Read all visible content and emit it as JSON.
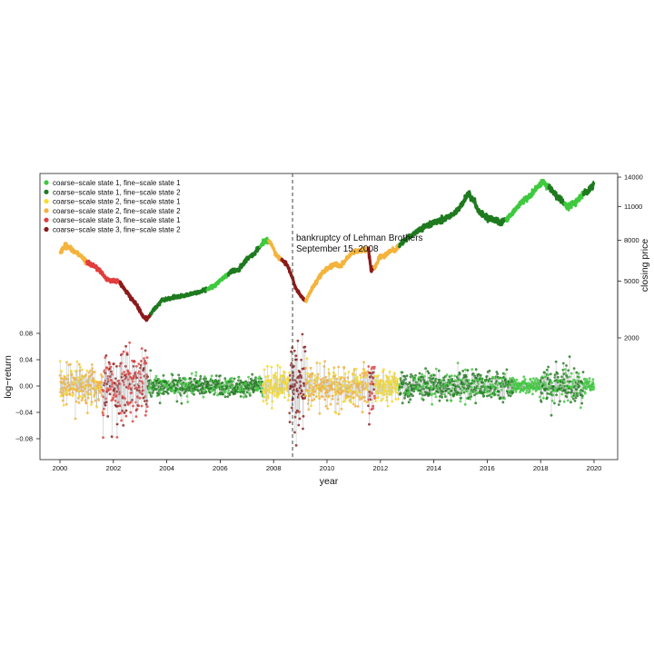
{
  "chart_data": {
    "type": "scatter",
    "xlabel": "year",
    "ylabel_left": "log−return",
    "ylabel_right": "closing price",
    "xlim": [
      1999.6,
      2020.5
    ],
    "x_ticks": [
      2000,
      2002,
      2004,
      2006,
      2008,
      2010,
      2012,
      2014,
      2016,
      2018,
      2020
    ],
    "y_left_ticks": [
      0.08,
      0.04,
      0.0,
      -0.04,
      -0.08
    ],
    "y_left_tick_labels": [
      "0.08",
      "0.04",
      "0.00",
      "−0.04",
      "−0.08"
    ],
    "y_left_range": [
      -0.095,
      0.09
    ],
    "y_right_ticks": [
      14000,
      11000,
      8000,
      5000,
      2000
    ],
    "y_right_tick_labels": [
      "14000",
      "11000",
      "8000",
      "5000",
      "2000"
    ],
    "y_right_transform": "sqrt",
    "grid": false,
    "legend_position": "top-left",
    "legend": [
      {
        "label": "coarse−scale state 1, fine−scale state 1",
        "color": "#3ec93e"
      },
      {
        "label": "coarse−scale state 1, fine−scale state 2",
        "color": "#1e7a1e"
      },
      {
        "label": "coarse−scale state 2, fine−scale state 1",
        "color": "#f7dd2e"
      },
      {
        "label": "coarse−scale state 2, fine−scale state 2",
        "color": "#f4b33c"
      },
      {
        "label": "coarse−scale state 3, fine−scale state 1",
        "color": "#e23d3d"
      },
      {
        "label": "coarse−scale state 3, fine−scale state 2",
        "color": "#8b1a1a"
      }
    ],
    "annotation": {
      "x": 2008.71,
      "lines": [
        "bankruptcy of Lehman Brothers",
        "September 15, 2008"
      ]
    },
    "closing_price": {
      "x": [
        2000.0,
        2000.2,
        2000.5,
        2000.8,
        2001.0,
        2001.2,
        2001.5,
        2001.7,
        2001.9,
        2002.2,
        2002.5,
        2002.7,
        2002.9,
        2003.1,
        2003.25,
        2003.5,
        2003.8,
        2004.0,
        2004.3,
        2004.6,
        2004.9,
        2005.2,
        2005.5,
        2005.8,
        2006.1,
        2006.4,
        2006.7,
        2007.0,
        2007.3,
        2007.5,
        2007.7,
        2007.9,
        2008.1,
        2008.3,
        2008.5,
        2008.7,
        2008.8,
        2009.0,
        2009.2,
        2009.5,
        2009.8,
        2010.0,
        2010.3,
        2010.5,
        2010.8,
        2011.0,
        2011.3,
        2011.55,
        2011.65,
        2011.8,
        2012.0,
        2012.3,
        2012.6,
        2012.9,
        2013.2,
        2013.5,
        2013.8,
        2014.1,
        2014.4,
        2014.7,
        2015.0,
        2015.3,
        2015.5,
        2015.7,
        2016.0,
        2016.2,
        2016.5,
        2016.8,
        2017.0,
        2017.3,
        2017.6,
        2017.9,
        2018.05,
        2018.3,
        2018.6,
        2018.9,
        2019.0,
        2019.3,
        2019.6,
        2019.8,
        2020.0
      ],
      "y": [
        7000,
        7600,
        7200,
        6700,
        6300,
        6100,
        5700,
        5200,
        5000,
        5000,
        4300,
        3900,
        3500,
        3000,
        2800,
        3300,
        3800,
        3900,
        4000,
        4100,
        4200,
        4300,
        4500,
        4700,
        5200,
        5600,
        5800,
        6500,
        7000,
        7500,
        8000,
        7800,
        6800,
        6500,
        6100,
        5200,
        4700,
        4100,
        3800,
        4700,
        5500,
        5800,
        6200,
        6000,
        6700,
        7100,
        7200,
        7300,
        5700,
        6000,
        6700,
        7000,
        7300,
        8000,
        8500,
        8900,
        9300,
        9600,
        9800,
        10200,
        11000,
        12300,
        11500,
        10500,
        10000,
        9800,
        9500,
        10000,
        10500,
        11500,
        12000,
        13000,
        13500,
        13000,
        12000,
        11300,
        10900,
        11500,
        12300,
        12500,
        13300
      ],
      "segments": [
        {
          "from": 2000.0,
          "to": 2001.0,
          "state": 3
        },
        {
          "from": 2001.0,
          "to": 2002.25,
          "state": 4
        },
        {
          "from": 2002.25,
          "to": 2003.0,
          "state": 5
        },
        {
          "from": 2003.0,
          "to": 2003.4,
          "state": 5
        },
        {
          "from": 2003.4,
          "to": 2005.5,
          "state": 1
        },
        {
          "from": 2005.5,
          "to": 2006.3,
          "state": 0
        },
        {
          "from": 2006.3,
          "to": 2007.5,
          "state": 1
        },
        {
          "from": 2007.5,
          "to": 2007.8,
          "state": 0
        },
        {
          "from": 2007.8,
          "to": 2008.3,
          "state": 3
        },
        {
          "from": 2008.3,
          "to": 2008.8,
          "state": 5
        },
        {
          "from": 2008.8,
          "to": 2009.2,
          "state": 5
        },
        {
          "from": 2009.2,
          "to": 2011.55,
          "state": 3
        },
        {
          "from": 2011.55,
          "to": 2011.75,
          "state": 5
        },
        {
          "from": 2011.75,
          "to": 2012.7,
          "state": 3
        },
        {
          "from": 2012.7,
          "to": 2016.7,
          "state": 1
        },
        {
          "from": 2016.7,
          "to": 2017.5,
          "state": 0
        },
        {
          "from": 2017.5,
          "to": 2018.3,
          "state": 0
        },
        {
          "from": 2018.3,
          "to": 2018.9,
          "state": 1
        },
        {
          "from": 2018.9,
          "to": 2019.6,
          "state": 0
        },
        {
          "from": 2019.6,
          "to": 2020.0,
          "state": 1
        }
      ]
    },
    "log_return_regimes": [
      {
        "from": 2000.0,
        "to": 2001.6,
        "state": 3,
        "amplitude": 0.035
      },
      {
        "from": 2001.6,
        "to": 2003.3,
        "state": 4,
        "amplitude": 0.06
      },
      {
        "from": 2003.3,
        "to": 2007.6,
        "state": 1,
        "amplitude": 0.018
      },
      {
        "from": 2007.6,
        "to": 2008.6,
        "state": 2,
        "amplitude": 0.03
      },
      {
        "from": 2008.6,
        "to": 2009.2,
        "state": 5,
        "amplitude": 0.085
      },
      {
        "from": 2009.2,
        "to": 2011.55,
        "state": 3,
        "amplitude": 0.035
      },
      {
        "from": 2011.55,
        "to": 2011.8,
        "state": 4,
        "amplitude": 0.05
      },
      {
        "from": 2011.8,
        "to": 2012.7,
        "state": 2,
        "amplitude": 0.025
      },
      {
        "from": 2012.7,
        "to": 2017.0,
        "state": 1,
        "amplitude": 0.025
      },
      {
        "from": 2017.0,
        "to": 2018.0,
        "state": 0,
        "amplitude": 0.012
      },
      {
        "from": 2018.0,
        "to": 2019.6,
        "state": 1,
        "amplitude": 0.03
      },
      {
        "from": 2019.6,
        "to": 2020.0,
        "state": 0,
        "amplitude": 0.012
      }
    ]
  }
}
